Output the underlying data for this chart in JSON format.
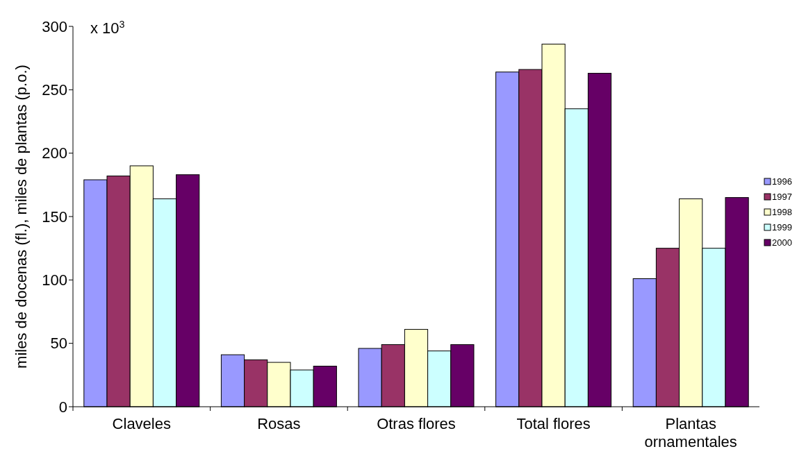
{
  "chart_data": {
    "type": "bar",
    "ylabel": "miles de docenas (fl.), miles de plantas (p.o.)",
    "annotations": [
      "x 10$^{3}$"
    ],
    "categories": [
      "Claveles",
      "Rosas",
      "Otras flores",
      "Total flores",
      "Plantas ornamentales"
    ],
    "series": [
      {
        "name": "1996",
        "color": "#9999ff",
        "values": [
          179,
          41,
          46,
          264,
          101
        ]
      },
      {
        "name": "1997",
        "color": "#993366",
        "values": [
          182,
          37,
          49,
          266,
          125
        ]
      },
      {
        "name": "1998",
        "color": "#ffffcc",
        "values": [
          190,
          35,
          61,
          286,
          164
        ]
      },
      {
        "name": "1999",
        "color": "#ccffff",
        "values": [
          164,
          29,
          44,
          235,
          125
        ]
      },
      {
        "name": "2000",
        "color": "#660066",
        "values": [
          183,
          32,
          49,
          263,
          165
        ]
      }
    ],
    "ylim": [
      0,
      300
    ],
    "yticks": [
      0,
      50,
      100,
      150,
      200,
      250,
      300
    ],
    "legend": "right",
    "grid": false
  }
}
